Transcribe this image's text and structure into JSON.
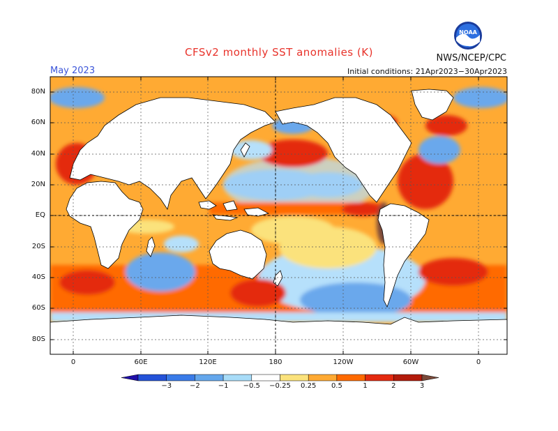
{
  "title": "CFSv2 monthly SST anomalies (K)",
  "month": "May 2023",
  "initial_conditions": "Initial conditions: 21Apr2023−30Apr2023",
  "credit": "NWS/NCEP/CPC",
  "logo_text": "NOAA",
  "lat_labels": [
    "80N",
    "60N",
    "40N",
    "20N",
    "EQ",
    "20S",
    "40S",
    "60S",
    "80S"
  ],
  "lon_labels": [
    "0",
    "60E",
    "120E",
    "180",
    "120W",
    "60W",
    "0"
  ],
  "colorbar": {
    "labels": [
      "−3",
      "−2",
      "−1",
      "−0.5",
      "−0.25",
      "0.25",
      "0.5",
      "1",
      "2",
      "3"
    ],
    "colors": [
      "#1f0fa8",
      "#2452d8",
      "#3a7be8",
      "#64a7ec",
      "#a8dcf8",
      "#ffffff",
      "#fbe27c",
      "#ffaa33",
      "#ff6a00",
      "#e42a10",
      "#b31b0b",
      "#7a4a3a"
    ]
  },
  "anomaly_colors": {
    "strong_cold": "#2f66db",
    "cold": "#6aa8ec",
    "light_cold": "#b6e0fb",
    "light_warm": "#fbe27c",
    "warm": "#ffaa33",
    "hot": "#ff6a00",
    "very_hot": "#e42a10",
    "extreme": "#7a4a3a",
    "land": "#ffffff"
  }
}
